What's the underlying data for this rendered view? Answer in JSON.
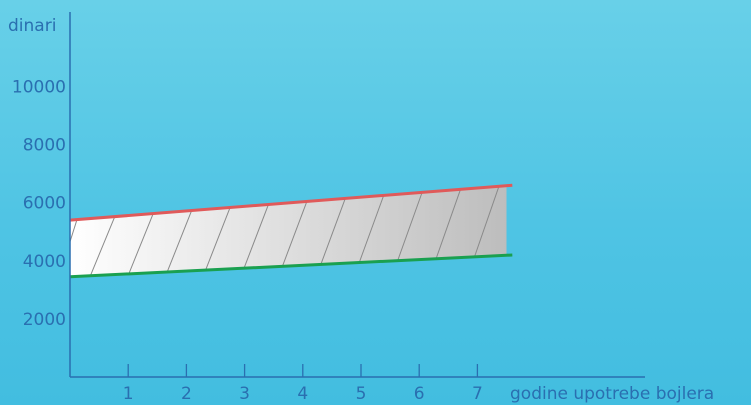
{
  "chart_data": {
    "type": "area",
    "ylabel": "dinari",
    "xlabel": "godine upotrebe bojlera",
    "xlim": [
      0,
      10
    ],
    "ylim": [
      0,
      12000
    ],
    "xticks": [
      "1",
      "2",
      "3",
      "4",
      "5",
      "6",
      "7"
    ],
    "yticks": [
      "2000",
      "4000",
      "6000",
      "8000",
      "10000"
    ],
    "series": [
      {
        "color": "#e05a5a",
        "x": [
          0,
          7.6
        ],
        "values": [
          5400,
          6600
        ]
      },
      {
        "color": "#1aa050",
        "x": [
          0,
          7.6
        ],
        "values": [
          3450,
          4200
        ]
      }
    ],
    "shaded_band": {
      "from_x": 0,
      "to_x": 7.5
    },
    "grid": false,
    "colors": {
      "axis": "#2a6fb0",
      "band_light": "#ffffff",
      "band_dark": "#bdbdbd",
      "hatch": "#8a8a8a"
    }
  }
}
